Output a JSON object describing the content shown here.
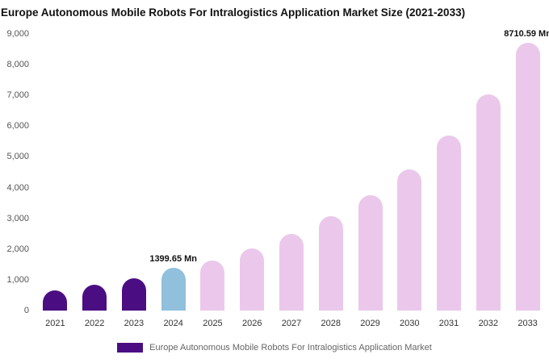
{
  "title": "Europe Autonomous Mobile Robots For Intralogistics Application Market Size (2021-2033)",
  "legend": {
    "label": "Europe Autonomous Mobile Robots For Intralogistics Application Market",
    "swatch_color": "#4B0E82"
  },
  "colors": {
    "historical_purple": "#4B0E82",
    "base_year_blue": "#90C0DC",
    "forecast_pink": "#EBC8EB"
  },
  "chart_data": {
    "type": "bar",
    "title": "Europe Autonomous Mobile Robots For Intralogistics Application Market Size (2021-2033)",
    "xlabel": "",
    "ylabel": "",
    "unit": "Mn",
    "categories": [
      "2021",
      "2022",
      "2023",
      "2024",
      "2025",
      "2026",
      "2027",
      "2028",
      "2029",
      "2030",
      "2031",
      "2032",
      "2033"
    ],
    "values": [
      660,
      850,
      1060,
      1399.65,
      1640,
      2020,
      2490,
      3080,
      3760,
      4600,
      5700,
      7040,
      8710.59
    ],
    "bar_colors": [
      "#4B0E82",
      "#4B0E82",
      "#4B0E82",
      "#90C0DC",
      "#EBC8EB",
      "#EBC8EB",
      "#EBC8EB",
      "#EBC8EB",
      "#EBC8EB",
      "#EBC8EB",
      "#EBC8EB",
      "#EBC8EB",
      "#EBC8EB"
    ],
    "point_labels": [
      "",
      "",
      "",
      "1399.65 Mn",
      "",
      "",
      "",
      "",
      "",
      "",
      "",
      "",
      "8710.59 Mn"
    ],
    "ylim": [
      0,
      9000
    ],
    "yticks": [
      "0",
      "1,000",
      "2,000",
      "3,000",
      "4,000",
      "5,000",
      "6,000",
      "7,000",
      "8,000",
      "9,000"
    ],
    "grid": false,
    "legend_position": "bottom"
  }
}
